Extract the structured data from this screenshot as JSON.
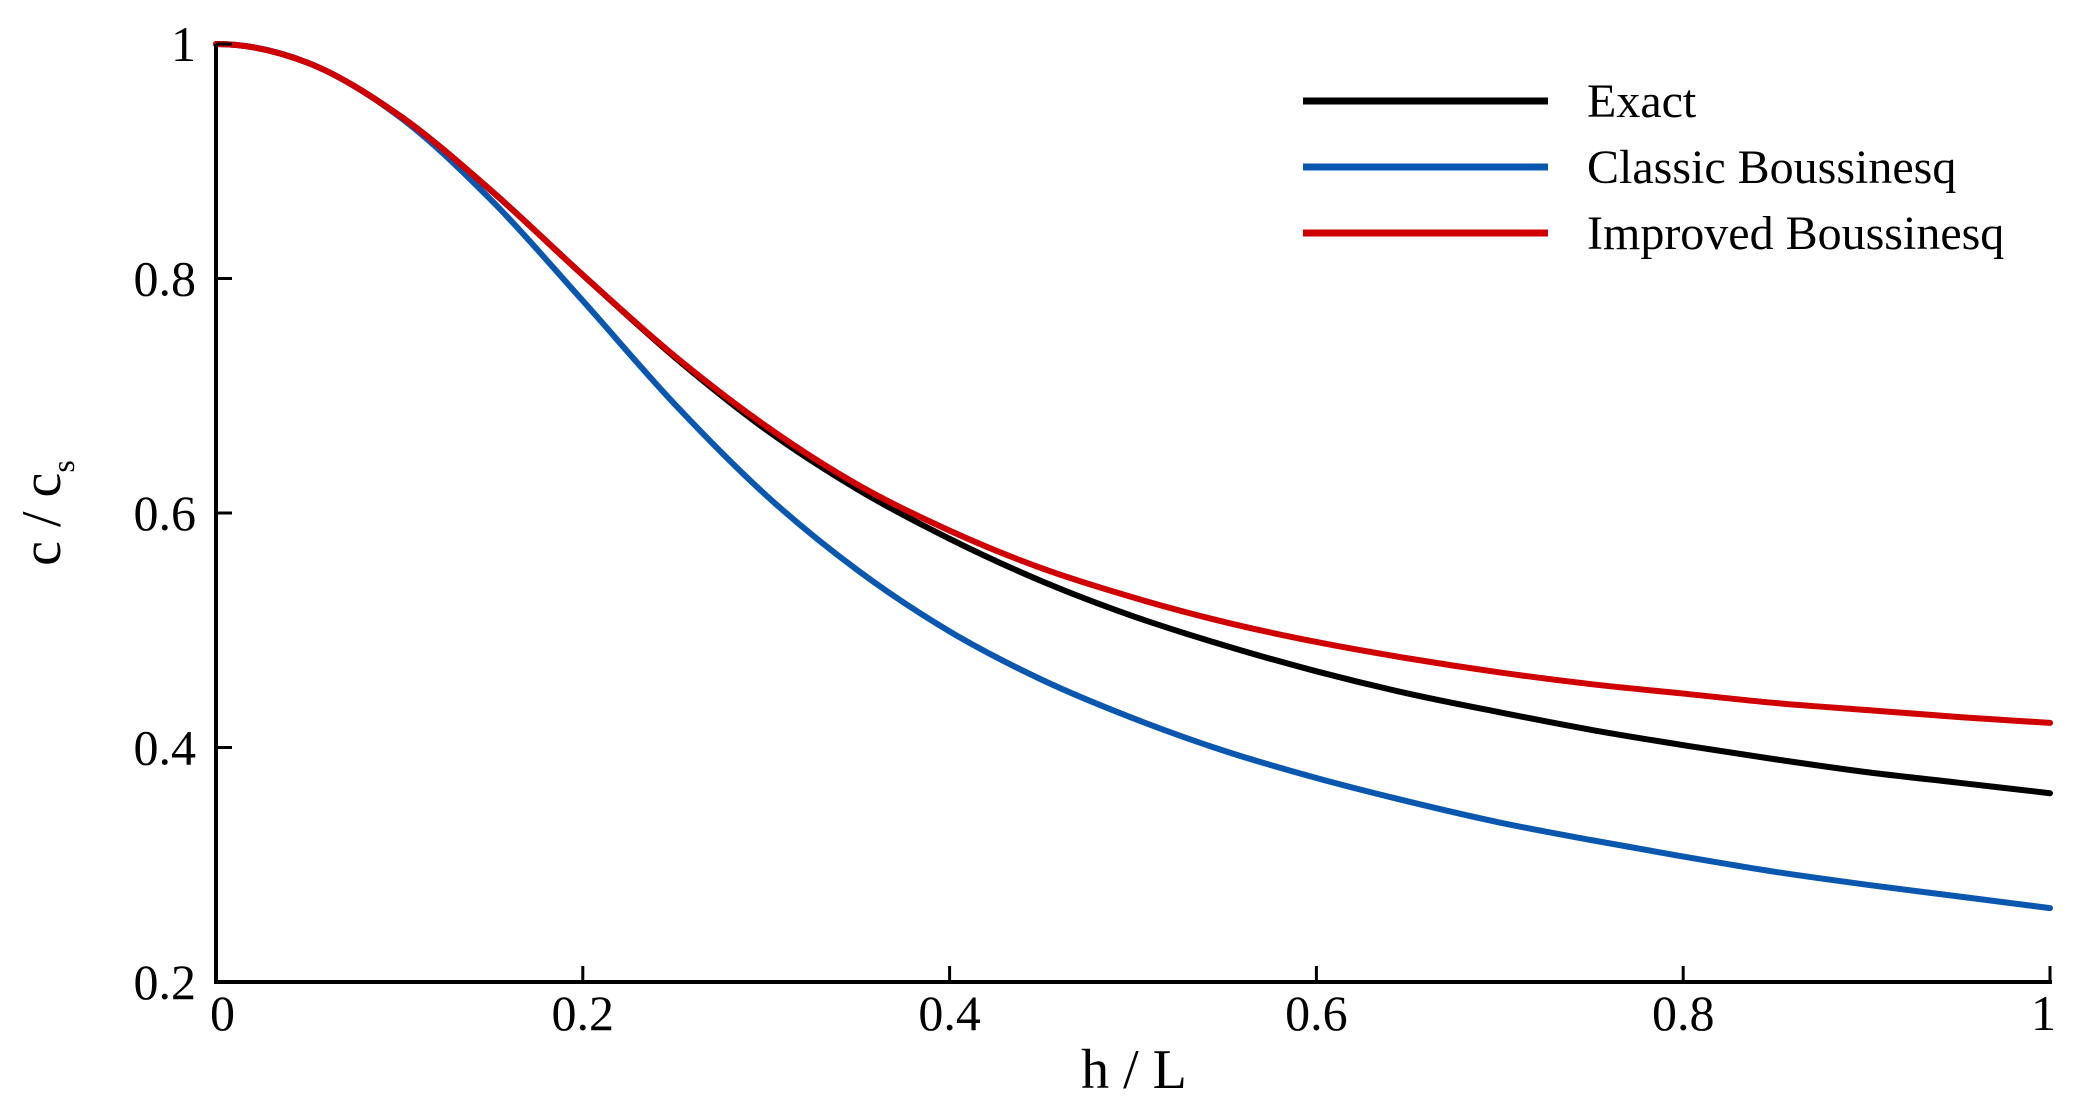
{
  "chart_data": {
    "type": "line",
    "xlabel": "h / L",
    "ylabel": {
      "base": "c / c",
      "subscript": "s"
    },
    "xlim": [
      0,
      1
    ],
    "ylim": [
      0.2,
      1
    ],
    "xticks": [
      "0",
      "0.2",
      "0.4",
      "0.6",
      "0.8",
      "1"
    ],
    "yticks": [
      "0.2",
      "0.4",
      "0.6",
      "0.8",
      "1"
    ],
    "grid": false,
    "legend_position": "top-right",
    "x": [
      0,
      0.05,
      0.1,
      0.15,
      0.2,
      0.25,
      0.3,
      0.35,
      0.4,
      0.45,
      0.5,
      0.55,
      0.6,
      0.65,
      0.7,
      0.75,
      0.8,
      0.85,
      0.9,
      0.95,
      1
    ],
    "series": [
      {
        "name": "Exact",
        "color": "#000000",
        "values": [
          1,
          0.984,
          0.939,
          0.875,
          0.803,
          0.733,
          0.671,
          0.62,
          0.578,
          0.542,
          0.512,
          0.487,
          0.465,
          0.446,
          0.43,
          0.415,
          0.402,
          0.39,
          0.379,
          0.37,
          0.361
        ]
      },
      {
        "name": "Classic Boussinesq",
        "color": "#0a57b0",
        "values": [
          1,
          0.984,
          0.938,
          0.867,
          0.781,
          0.693,
          0.615,
          0.551,
          0.499,
          0.458,
          0.425,
          0.397,
          0.374,
          0.354,
          0.336,
          0.321,
          0.307,
          0.294,
          0.283,
          0.273,
          0.263
        ]
      },
      {
        "name": "Improved Boussinesq",
        "color": "#d00000",
        "values": [
          1,
          0.984,
          0.939,
          0.875,
          0.803,
          0.734,
          0.674,
          0.624,
          0.585,
          0.553,
          0.528,
          0.507,
          0.49,
          0.476,
          0.464,
          0.454,
          0.446,
          0.438,
          0.432,
          0.426,
          0.421
        ]
      }
    ]
  }
}
